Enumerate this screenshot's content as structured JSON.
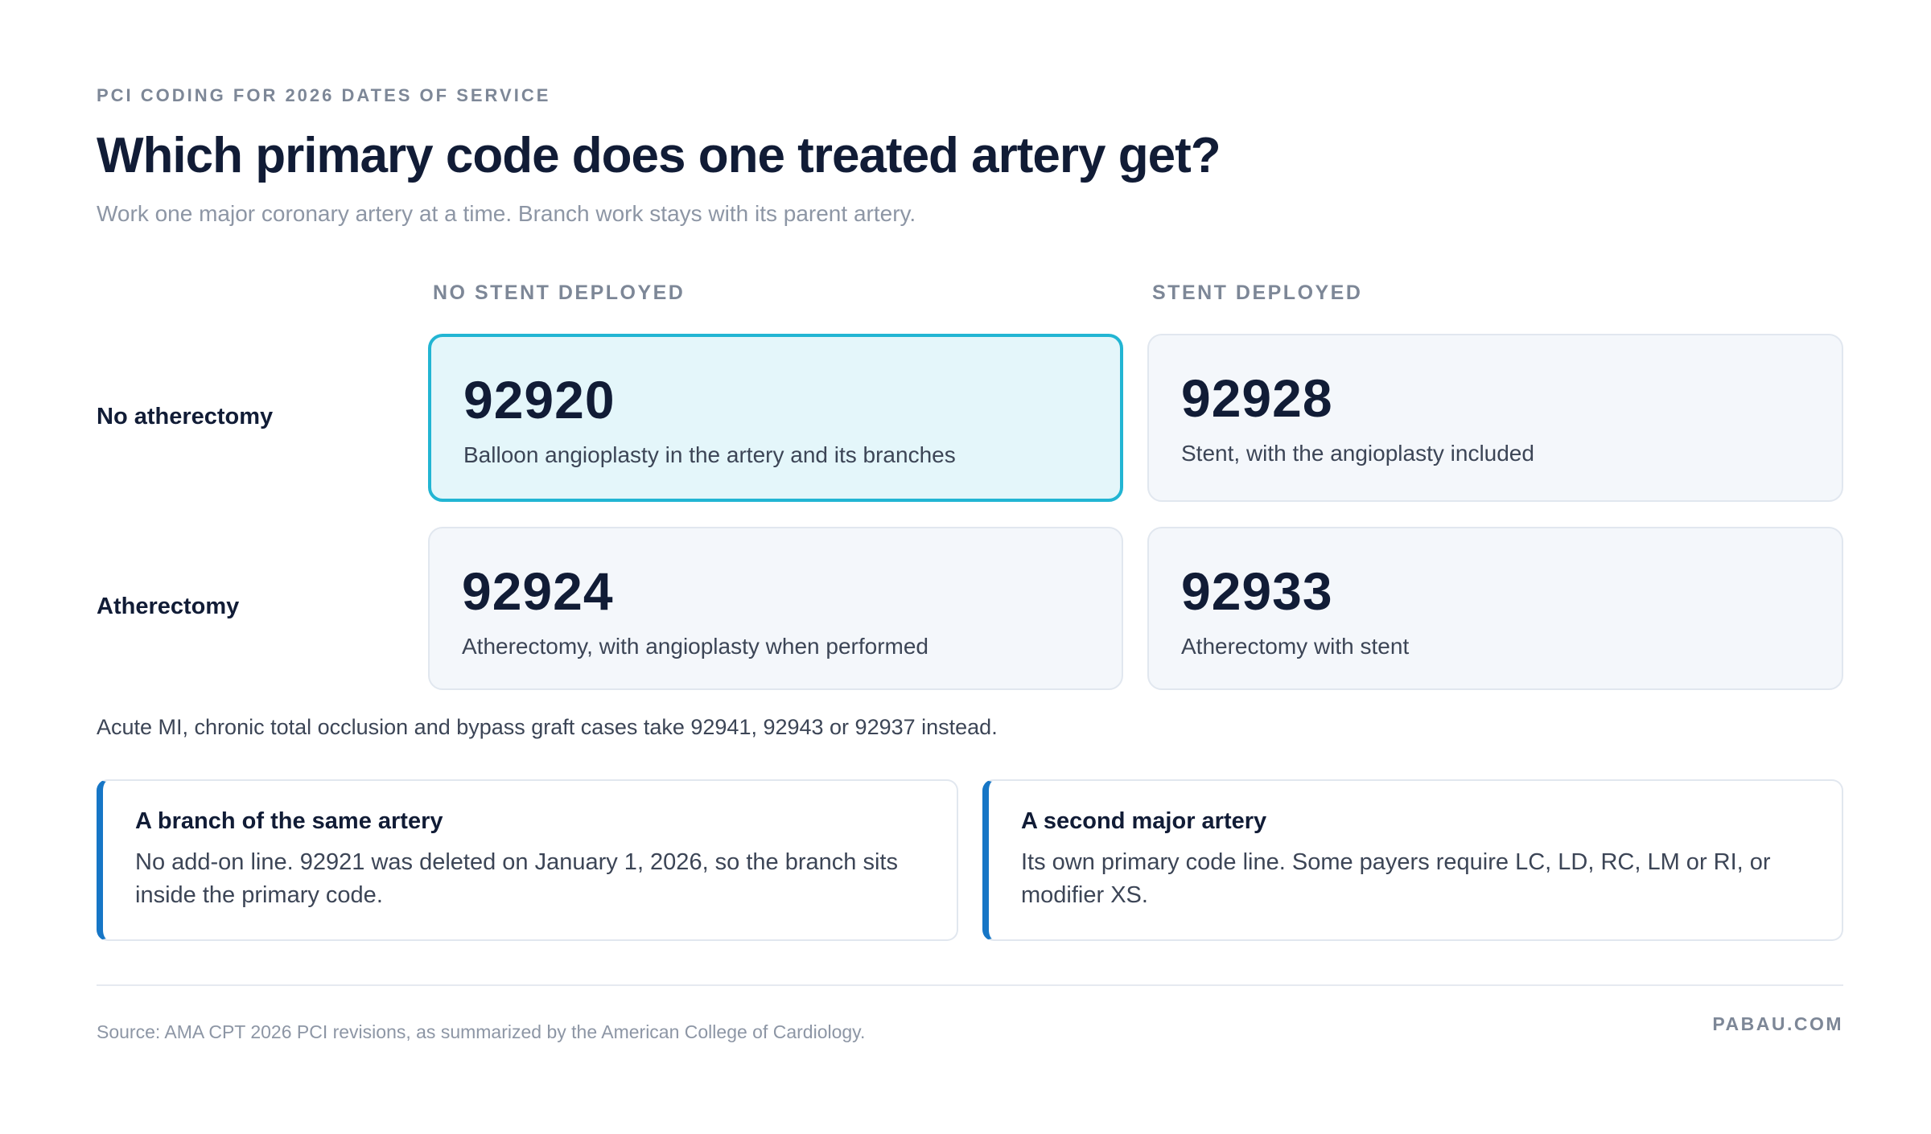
{
  "header": {
    "eyebrow": "PCI CODING FOR 2026 DATES OF SERVICE",
    "title": "Which primary code does one treated artery get?",
    "subtitle": "Work one major coronary artery at a time. Branch work stays with its parent artery."
  },
  "grid": {
    "columns": [
      "NO STENT DEPLOYED",
      "STENT DEPLOYED"
    ],
    "rows": [
      {
        "label": "No atherectomy",
        "cells": [
          {
            "code": "92920",
            "description": "Balloon angioplasty in the artery and its branches"
          },
          {
            "code": "92928",
            "description": "Stent, with the angioplasty included"
          }
        ]
      },
      {
        "label": "Atherectomy",
        "cells": [
          {
            "code": "92924",
            "description": "Atherectomy, with angioplasty when performed"
          },
          {
            "code": "92933",
            "description": "Atherectomy with stent"
          }
        ]
      }
    ]
  },
  "note": "Acute MI, chronic total occlusion and bypass graft cases take 92941, 92943 or 92937 instead.",
  "cards": [
    {
      "title": "A branch of the same artery",
      "body": "No add-on line. 92921 was deleted on January 1, 2026, so the branch sits inside the primary code."
    },
    {
      "title": "A second major artery",
      "body": "Its own primary code line. Some payers require LC, LD, RC, LM or RI, or modifier XS."
    }
  ],
  "footer": {
    "source": "Source: AMA CPT 2026 PCI revisions, as summarized by the American College of Cardiology.",
    "brand": "PABAU.COM"
  }
}
